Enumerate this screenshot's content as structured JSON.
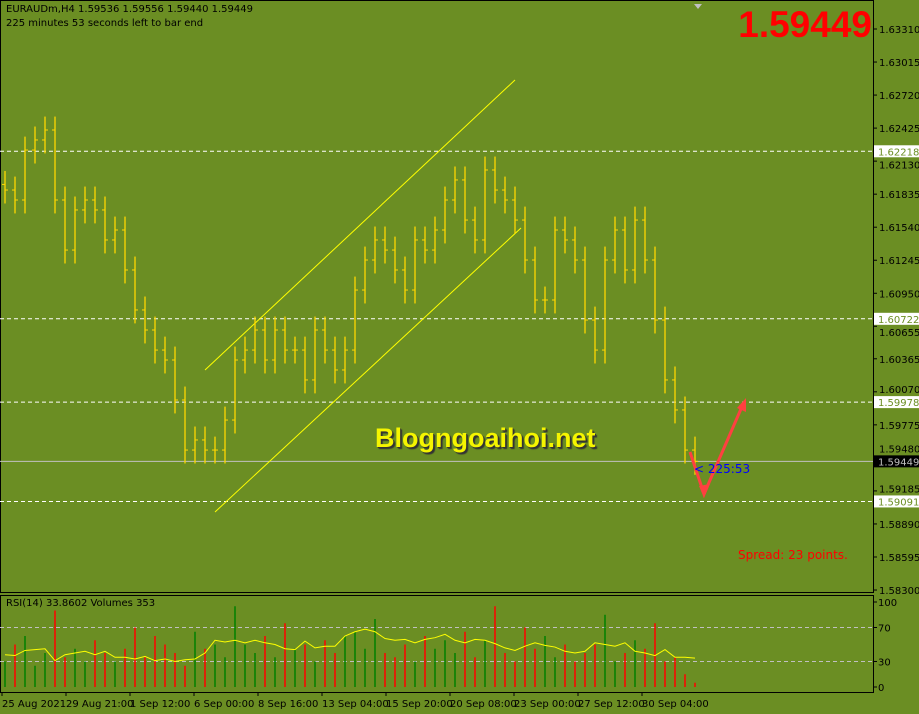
{
  "header": {
    "symbol_line": "EURAUDm,H4  1.59536 1.59556 1.59440 1.59449",
    "timer_line": "225 minutes 53 seconds left to bar end"
  },
  "current_price": "1.59449",
  "watermark": "Blogngoaihoi.net",
  "spread_text": "Spread: 23 points.",
  "bar_timer": "< 225:53",
  "indicator_label": "RSI(14) 33.8602  Volumes 353",
  "colors": {
    "background": "#6b8e23",
    "bars": "#ffd700",
    "rsi": "#ffff00",
    "volume_up": "#008000",
    "volume_down": "#ff0000",
    "arrow": "#ff4040",
    "big_price": "#ff0000"
  },
  "chart_data": {
    "type": "ohlc",
    "symbol": "EURAUDm",
    "timeframe": "H4",
    "ylim": [
      1.583,
      1.6345
    ],
    "y_ticks": [
      "1.63310",
      "1.63015",
      "1.62720",
      "1.62425",
      "1.62130",
      "1.61835",
      "1.61540",
      "1.61245",
      "1.60950",
      "1.60655",
      "1.60365",
      "1.60070",
      "1.59775",
      "1.59480",
      "1.59185",
      "1.58890",
      "1.58595",
      "1.58300"
    ],
    "x_ticks": [
      "25 Aug 2021",
      "29 Aug 21:00",
      "1 Sep 12:00",
      "6 Sep 00:00",
      "8 Sep 16:00",
      "13 Sep 04:00",
      "15 Sep 20:00",
      "20 Sep 08:00",
      "23 Sep 00:00",
      "27 Sep 12:00",
      "30 Sep 04:00"
    ],
    "closes": [
      1.61872,
      1.61783,
      1.62229,
      1.62319,
      1.62408,
      1.61783,
      1.61336,
      1.61694,
      1.61783,
      1.61694,
      1.61426,
      1.61515,
      1.61158,
      1.60801,
      1.60622,
      1.60443,
      1.60354,
      1.59997,
      1.5955,
      1.5964,
      1.5955,
      1.5955,
      1.59818,
      1.60354,
      1.60443,
      1.60622,
      1.60354,
      1.60622,
      1.60443,
      1.60443,
      1.60176,
      1.60622,
      1.60443,
      1.60265,
      1.60443,
      1.60979,
      1.61247,
      1.61426,
      1.61336,
      1.61158,
      1.60979,
      1.61426,
      1.61336,
      1.61515,
      1.61783,
      1.61962,
      1.61604,
      1.61426,
      1.62051,
      1.61872,
      1.61783,
      1.61604,
      1.61247,
      1.6089,
      1.6089,
      1.61515,
      1.61426,
      1.61247,
      1.60711,
      1.60443,
      1.61247,
      1.61515,
      1.61158,
      1.61604,
      1.61247,
      1.60711,
      1.60176,
      1.59908,
      1.5955,
      1.59449
    ],
    "horizontal_lines": [
      {
        "price": 1.62218,
        "label": "1.62218",
        "style": "dashed"
      },
      {
        "price": 1.60722,
        "label": "1.60722",
        "style": "dashed"
      },
      {
        "price": 1.59978,
        "label": "1.59978",
        "style": "dashed"
      },
      {
        "price": 1.59091,
        "label": "1.59091",
        "style": "dashed"
      },
      {
        "price": 1.59449,
        "label": "1.59449",
        "style": "bid"
      }
    ],
    "rsi": {
      "period": 14,
      "current": 33.8602,
      "levels": [
        30,
        70
      ],
      "ylim": [
        0,
        100
      ],
      "y_ticks": [
        "100",
        "70",
        "30",
        "0"
      ],
      "values": [
        38,
        37,
        43,
        44,
        45,
        31,
        38,
        40,
        42,
        38,
        42,
        35,
        35,
        33,
        36,
        31,
        33,
        30,
        32,
        33,
        40,
        55,
        53,
        55,
        52,
        55,
        52,
        50,
        45,
        44,
        54,
        46,
        48,
        48,
        60,
        65,
        68,
        65,
        57,
        55,
        56,
        52,
        56,
        58,
        62,
        55,
        52,
        56,
        55,
        51,
        46,
        43,
        48,
        52,
        49,
        47,
        42,
        40,
        42,
        52,
        50,
        48,
        52,
        42,
        40,
        37,
        44,
        35,
        35,
        34
      ]
    },
    "volumes": {
      "current": 353,
      "values": [
        30,
        50,
        60,
        25,
        40,
        90,
        35,
        45,
        30,
        55,
        40,
        30,
        45,
        70,
        35,
        60,
        50,
        40,
        25,
        65,
        45,
        50,
        35,
        95,
        50,
        40,
        60,
        35,
        75,
        45,
        50,
        30,
        55,
        40,
        60,
        65,
        45,
        80,
        40,
        35,
        50,
        30,
        60,
        45,
        55,
        40,
        65,
        35,
        55,
        95,
        40,
        30,
        70,
        45,
        60,
        35,
        50,
        30,
        40,
        50,
        85,
        30,
        40,
        55,
        45,
        75,
        30,
        35,
        15,
        5
      ]
    }
  }
}
